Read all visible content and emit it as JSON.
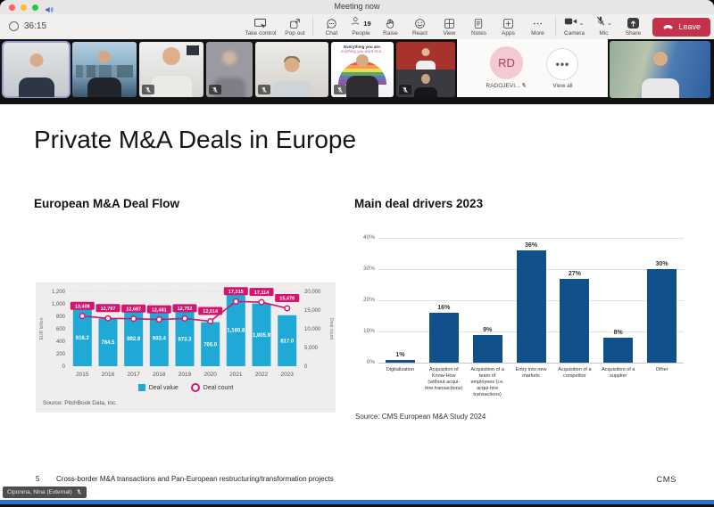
{
  "window": {
    "title": "Meeting now",
    "timer": "36:15"
  },
  "toolbar": {
    "take_control": "Take control",
    "pop_out": "Pop out",
    "chat": "Chat",
    "people": "People",
    "people_count": "19",
    "raise": "Raise",
    "react": "React",
    "view": "View",
    "notes": "Notes",
    "apps": "Apps",
    "more": "More",
    "camera": "Camera",
    "mic": "Mic",
    "share": "Share",
    "leave": "Leave"
  },
  "filmstrip": {
    "poster_line1": "Everything you are.",
    "poster_line2": "Anything you want to b...",
    "avatar_initials": "RD",
    "avatar_label": "RADOJEVI...",
    "view_all": "View all"
  },
  "slide": {
    "title": "Private M&A Deals in Europe",
    "left_section_title": "European M&A Deal Flow",
    "right_section_title": "Main deal drivers 2023",
    "footer_page": "5",
    "footer_text": "Cross-border M&A transactions and Pan-European restructuring/transformation projects",
    "footer_logo": "CMS"
  },
  "presenter_pill": "Ciponina, Nina (External)",
  "chart_data": [
    {
      "type": "bar",
      "subtype": "combo-bar-line",
      "title": "European M&A Deal Flow",
      "categories": [
        "2015",
        "2016",
        "2017",
        "2018",
        "2019",
        "2020",
        "2021",
        "2022",
        "2023"
      ],
      "series": [
        {
          "name": "Deal value",
          "chart": "bar",
          "axis": "left",
          "color": "#1fa9d6",
          "values": [
            916.2,
            764.5,
            892.8,
            903.4,
            873.3,
            706.0,
            1160.8,
            1005.9,
            817.0
          ],
          "labels": [
            "916.2",
            "764.5",
            "892.8",
            "903.4",
            "873.3",
            "706.0",
            "1,160.8",
            "1,005.9",
            "817.0"
          ]
        },
        {
          "name": "Deal count",
          "chart": "line",
          "axis": "right",
          "color": "#d4146e",
          "values": [
            13408,
            12797,
            12687,
            12481,
            12752,
            12014,
            17315,
            17114,
            15478
          ],
          "labels": [
            "13,408",
            "12,797",
            "12,687",
            "12,481",
            "12,752",
            "12,014",
            "17,315",
            "17,114",
            "15,478"
          ]
        }
      ],
      "ylabel_left": "EUR billion",
      "ylabel_right": "Deal count",
      "ylim_left": [
        0,
        1200
      ],
      "yticks_left": [
        "0",
        "200",
        "400",
        "600",
        "800",
        "1,000",
        "1,200"
      ],
      "ylim_right": [
        0,
        20000
      ],
      "yticks_right": [
        "0",
        "5,000",
        "10,000",
        "15,000",
        "20,000"
      ],
      "legend_position": "bottom",
      "grid": false,
      "source": "Source: PitchBook Data, Inc."
    },
    {
      "type": "bar",
      "title": "Main deal drivers 2023",
      "categories": [
        "Digitalization",
        "Acquisition of Know-How (without acqui-hire transactions)",
        "Acquisition of a team of employees (i.e. acqui-hire transactions)",
        "Entry into new markets",
        "Acquisition of a competitor",
        "Acquisition of a supplier",
        "Other"
      ],
      "values": [
        1,
        16,
        9,
        36,
        27,
        8,
        30
      ],
      "labels": [
        "1%",
        "16%",
        "9%",
        "36%",
        "27%",
        "8%",
        "30%"
      ],
      "bar_color": "#11518b",
      "ylim": [
        0,
        40
      ],
      "yticks": [
        "0%",
        "10%",
        "20%",
        "30%",
        "40%"
      ],
      "grid": true,
      "source": "Source: CMS European M&A Study 2024"
    }
  ]
}
